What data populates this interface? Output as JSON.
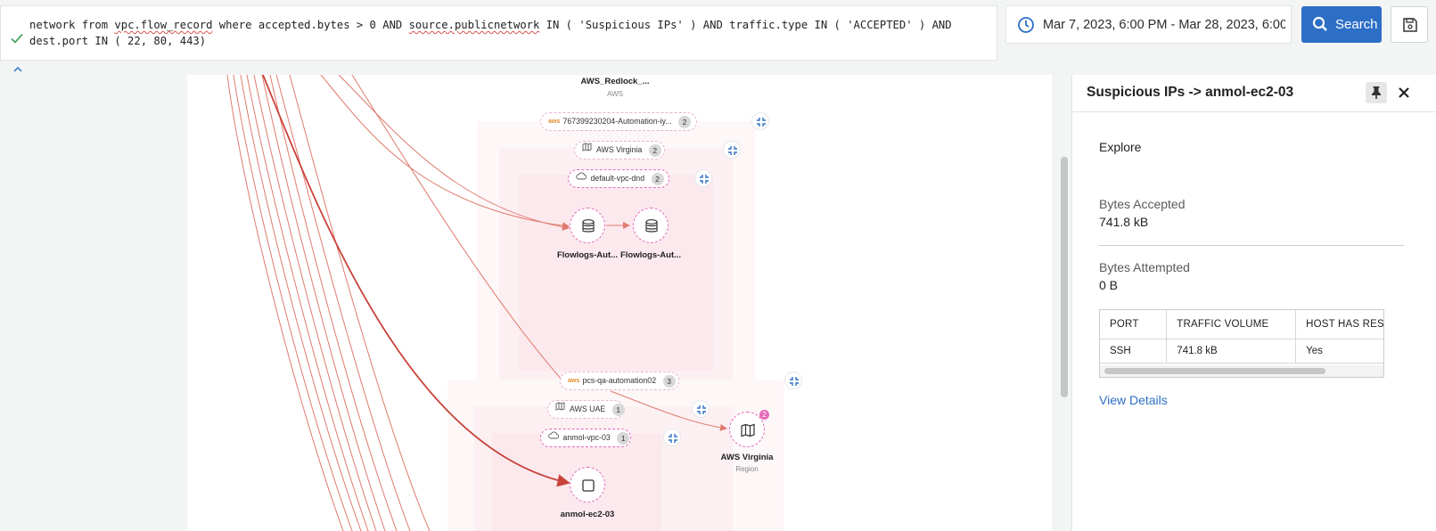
{
  "query": {
    "text_parts": [
      "network from ",
      "vpc.flow_record",
      " where accepted.bytes > 0 AND ",
      "source.publicnetwork",
      " IN ( 'Suspicious IPs' ) AND traffic.type IN ( 'ACCEPTED' ) AND dest.port IN ( 22, 80, 443)"
    ],
    "status_icon": "check-icon"
  },
  "date_range": {
    "value": "Mar 7, 2023, 6:00 PM - Mar 28, 2023, 6:00",
    "icon": "clock-icon"
  },
  "search": {
    "label": "Search",
    "icon": "search-icon"
  },
  "save": {
    "icon": "save-icon"
  },
  "graph": {
    "top_cloud": {
      "name": "AWS_Redlock_...",
      "type": "AWS"
    },
    "group1": {
      "account": {
        "label": "767399230204-Automation-iy...",
        "count": "2"
      },
      "region": {
        "label": "AWS Virginia",
        "count": "2"
      },
      "vpc": {
        "label": "default-vpc-dnd",
        "count": "2"
      },
      "nodes": [
        {
          "label": "Flowlogs-Aut..."
        },
        {
          "label": "Flowlogs-Aut..."
        }
      ]
    },
    "group2": {
      "account": {
        "label": "pcs-qa-automation02",
        "count": "3"
      },
      "region": {
        "label": "AWS UAE",
        "count": "1"
      },
      "vpc": {
        "label": "anmol-vpc-03",
        "count": "1"
      },
      "node": {
        "label": "anmol-ec2-03"
      }
    },
    "region_node": {
      "label": "AWS Virginia",
      "sublabel": "Region",
      "badge": "2"
    },
    "colors": {
      "edge": "#e07a6e",
      "edge_strong": "#c9433a",
      "pill": "#e66ab9"
    }
  },
  "panel": {
    "title": "Suspicious IPs -> anmol-ec2-03",
    "explore": "Explore",
    "bytes_accepted_label": "Bytes Accepted",
    "bytes_accepted_value": "741.8 kB",
    "bytes_attempted_label": "Bytes Attempted",
    "bytes_attempted_value": "0 B",
    "table": {
      "headers": [
        "PORT",
        "TRAFFIC VOLUME",
        "HOST HAS RESI"
      ],
      "rows": [
        [
          "SSH",
          "741.8 kB",
          "Yes"
        ]
      ]
    },
    "view_details": "View Details"
  }
}
